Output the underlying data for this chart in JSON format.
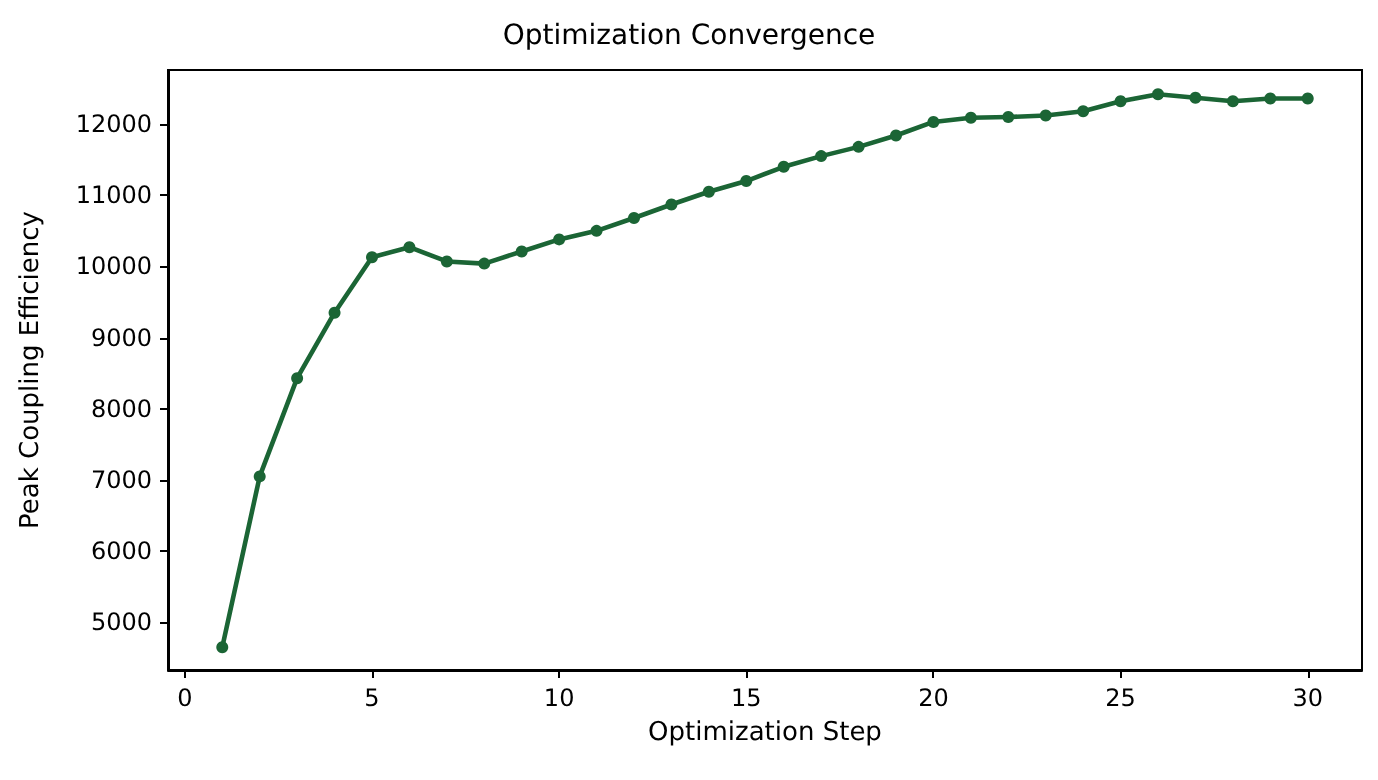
{
  "chart_data": {
    "type": "line",
    "title": "Optimization Convergence",
    "xlabel": "Optimization Step",
    "ylabel": "Peak Coupling Efficiency",
    "x": [
      1,
      2,
      3,
      4,
      5,
      6,
      7,
      8,
      9,
      10,
      11,
      12,
      13,
      14,
      15,
      16,
      17,
      18,
      19,
      20,
      21,
      22,
      23,
      24,
      25,
      26,
      27,
      28,
      29,
      30
    ],
    "series": [
      {
        "color": "#1b6535",
        "values": [
          4650,
          7050,
          8430,
          9350,
          10130,
          10270,
          10070,
          10040,
          10210,
          10380,
          10500,
          10680,
          10870,
          11050,
          11200,
          11400,
          11550,
          11680,
          11840,
          12030,
          12090,
          12100,
          12120,
          12180,
          12320,
          12420,
          12370,
          12320,
          12360,
          12360
        ]
      }
    ],
    "xlim": [
      -0.45,
      31.45
    ],
    "xticks": [
      0,
      5,
      10,
      15,
      20,
      25,
      30
    ],
    "ylim": [
      4330,
      12760
    ],
    "yticks": [
      5000,
      6000,
      7000,
      8000,
      9000,
      10000,
      11000,
      12000
    ],
    "grid": false,
    "marker": "circle",
    "line_style": "solid"
  }
}
